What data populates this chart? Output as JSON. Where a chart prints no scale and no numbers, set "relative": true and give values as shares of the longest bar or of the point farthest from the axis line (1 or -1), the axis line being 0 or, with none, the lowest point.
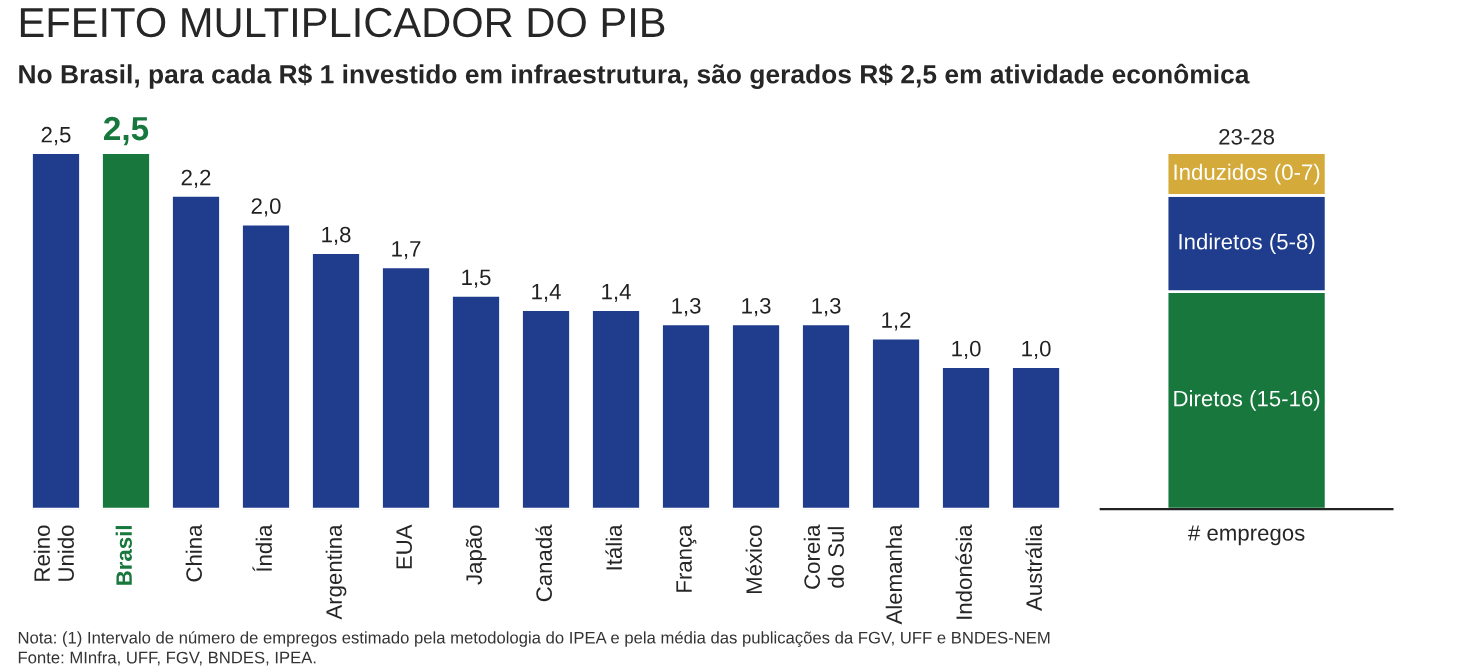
{
  "chart_data": [
    {
      "type": "bar",
      "title": "EFEITO MULTIPLICADOR DO PIB",
      "subtitle": "No Brasil, para cada R$ 1 investido em infraestrutura, são gerados R$ 2,5 em atividade econômica",
      "categories": [
        "Reino\nUnido",
        "Brasil",
        "China",
        "Índia",
        "Argentina",
        "EUA",
        "Japão",
        "Canadá",
        "Itália",
        "França",
        "México",
        "Coreia\ndo Sul",
        "Alemanha",
        "Indonésia",
        "Austrália"
      ],
      "values": [
        2.5,
        2.5,
        2.2,
        2.0,
        1.8,
        1.7,
        1.5,
        1.4,
        1.4,
        1.3,
        1.3,
        1.3,
        1.2,
        1.0,
        1.0
      ],
      "value_labels": [
        "2,5",
        "2,5",
        "2,2",
        "2,0",
        "1,8",
        "1,7",
        "1,5",
        "1,4",
        "1,4",
        "1,3",
        "1,3",
        "1,3",
        "1,2",
        "1,0",
        "1,0"
      ],
      "colors": [
        "#1f3d8c",
        "#17773c",
        "#1f3d8c",
        "#1f3d8c",
        "#1f3d8c",
        "#1f3d8c",
        "#1f3d8c",
        "#1f3d8c",
        "#1f3d8c",
        "#1f3d8c",
        "#1f3d8c",
        "#1f3d8c",
        "#1f3d8c",
        "#1f3d8c",
        "#1f3d8c"
      ],
      "annotations": [
        "Nota: (1) Intervalo de número de empregos estimado pela metodologia do IPEA e pela média das publicações da FGV, UFF e BNDES-NEM",
        "Fonte: MInfra, UFF, FGV, BNDES, IPEA."
      ],
      "tick_labels": "x",
      "grid": false,
      "legend": false
    },
    {
      "type": "bar",
      "stacked": true,
      "relative": true,
      "categories": [
        "# empregos"
      ],
      "series": [
        {
          "name": "Diretos (15-16)",
          "color": "#17773c",
          "values": [
            0.61
          ]
        },
        {
          "name": "Indiretos (5-8)",
          "color": "#1f3d8c",
          "values": [
            0.27
          ]
        },
        {
          "name": "Induzidos (0-7)",
          "color": "#d4aa3a",
          "values": [
            0.12
          ]
        }
      ],
      "totals": [
        "23-28"
      ],
      "tick_labels": "x",
      "grid": false,
      "legend": false
    }
  ]
}
